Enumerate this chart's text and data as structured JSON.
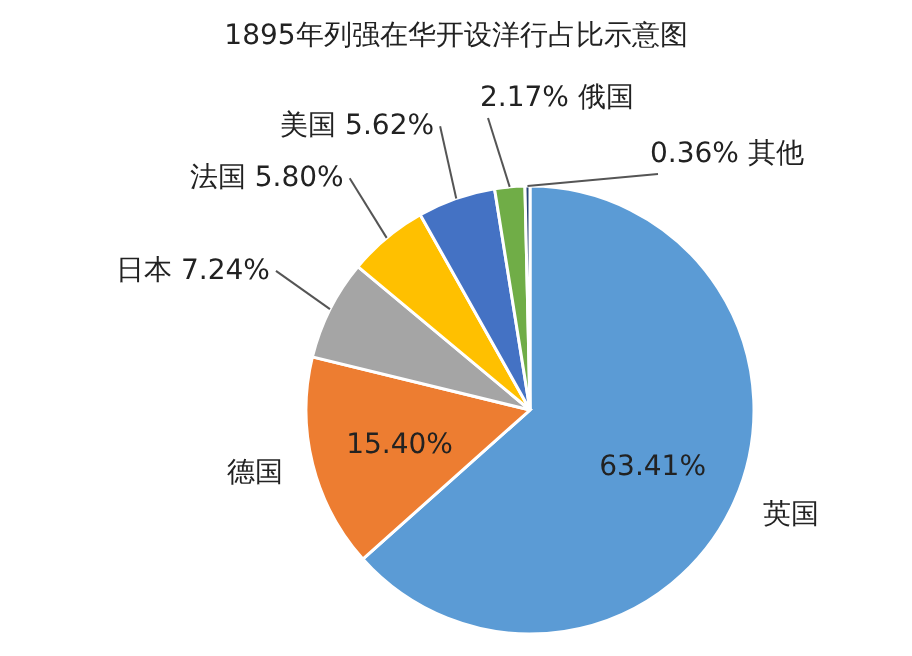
{
  "chart_data": {
    "type": "pie",
    "title": "1895年列强在华开设洋行占比示意图",
    "categories": [
      "英国",
      "德国",
      "日本",
      "法国",
      "美国",
      "俄国",
      "其他"
    ],
    "values": [
      63.41,
      15.4,
      7.24,
      5.8,
      5.62,
      2.17,
      0.36
    ],
    "value_labels": [
      "63.41%",
      "15.40%",
      "7.24%",
      "5.80%",
      "5.62%",
      "2.17%",
      "0.36%"
    ],
    "colors": [
      "#5b9bd5",
      "#ed7d31",
      "#a5a5a5",
      "#ffc000",
      "#4472c4",
      "#70ad47",
      "#264478"
    ]
  }
}
